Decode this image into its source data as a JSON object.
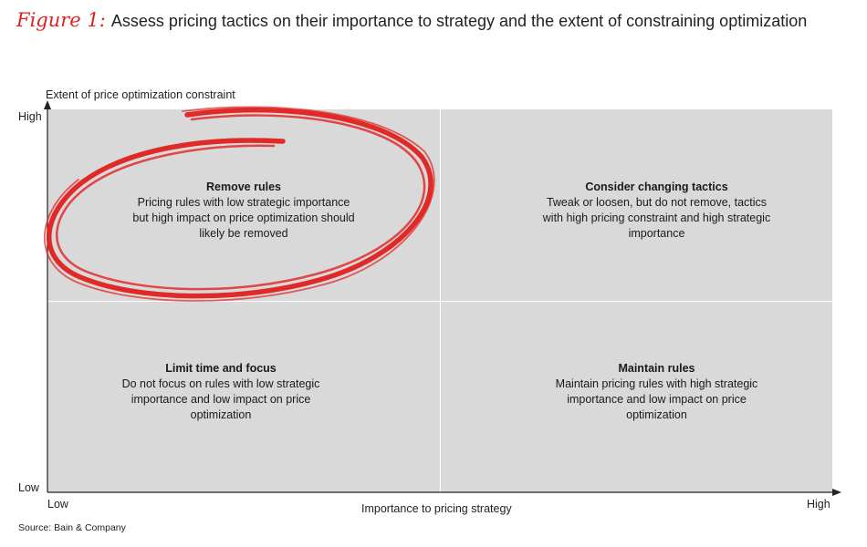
{
  "title": {
    "figure_label": "Figure 1:",
    "text": "Assess pricing tactics on their importance to strategy and the extent of constraining optimization"
  },
  "axes": {
    "y_title": "Extent of price optimization constraint",
    "y_high": "High",
    "y_low": "Low",
    "x_title": "Importance to pricing strategy",
    "x_low": "Low",
    "x_high": "High"
  },
  "quadrants": {
    "top_left": {
      "title": "Remove rules",
      "body": "Pricing rules with low strategic importance but high impact on price optimization should likely be removed"
    },
    "top_right": {
      "title": "Consider changing tactics",
      "body": "Tweak or loosen, but do not remove, tactics with high pricing constraint and high strategic importance"
    },
    "bottom_left": {
      "title": "Limit time and focus",
      "body": "Do not focus on rules with low strategic importance and low impact on price optimization"
    },
    "bottom_right": {
      "title": "Maintain rules",
      "body": "Maintain pricing rules with high strategic importance and low impact on price optimization"
    }
  },
  "source": "Source: Bain & Company",
  "colors": {
    "accent": "#e0211f",
    "plot_background": "#d9d9d9",
    "divider": "#ffffff"
  }
}
